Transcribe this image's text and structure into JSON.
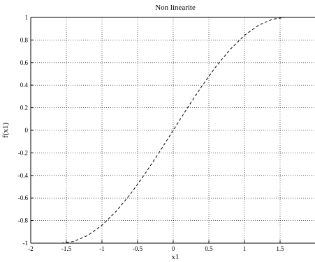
{
  "chart_data": {
    "type": "line",
    "title": "Non linearite",
    "xlabel": "x1",
    "ylabel": "f(x1)",
    "xlim": [
      -2,
      2
    ],
    "ylim": [
      -1,
      1
    ],
    "grid": true,
    "x_ticks": [
      -2,
      -1.5,
      -1,
      -0.5,
      0,
      0.5,
      1,
      1.5
    ],
    "y_ticks": [
      -1,
      -0.8,
      -0.6,
      -0.4,
      -0.2,
      0,
      0.2,
      0.4,
      0.6,
      0.8,
      1
    ],
    "series": [
      {
        "line_style": "dashed",
        "color": "#000000",
        "x": [
          -1.5708,
          -1.4,
          -1.2,
          -1.0,
          -0.8,
          -0.6,
          -0.4,
          -0.2,
          0.0,
          0.2,
          0.4,
          0.6,
          0.8,
          1.0,
          1.2,
          1.4,
          1.5708
        ],
        "y": [
          -1.0,
          -0.985,
          -0.932,
          -0.841,
          -0.717,
          -0.565,
          -0.389,
          -0.199,
          0.0,
          0.199,
          0.389,
          0.565,
          0.717,
          0.841,
          0.932,
          0.985,
          1.0
        ]
      }
    ]
  }
}
